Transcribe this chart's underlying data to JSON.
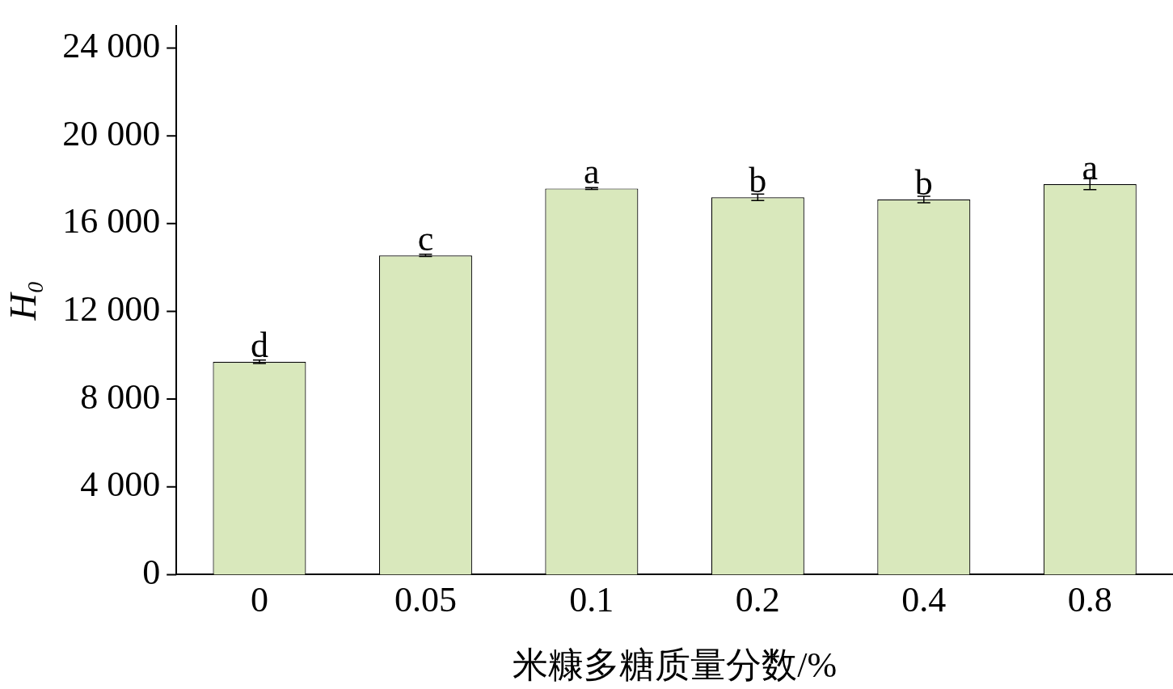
{
  "chart_data": {
    "type": "bar",
    "xlabel": "米糠多糖质量分数/%",
    "ylabel": "H₀",
    "categories": [
      "0",
      "0.05",
      "0.1",
      "0.2",
      "0.4",
      "0.8"
    ],
    "series": [
      {
        "color": "#d9e8bc",
        "values": [
          9700,
          14550,
          17600,
          17200,
          17100,
          17800
        ],
        "errors": [
          80,
          50,
          40,
          150,
          150,
          250
        ]
      }
    ],
    "ylim": [
      0,
      25000
    ],
    "yticks": [
      {
        "value": 0,
        "label": "0"
      },
      {
        "value": 4000,
        "label": "4 000"
      },
      {
        "value": 8000,
        "label": "8 000"
      },
      {
        "value": 12000,
        "label": "12 000"
      },
      {
        "value": 16000,
        "label": "16 000"
      },
      {
        "value": 20000,
        "label": "20 000"
      },
      {
        "value": 24000,
        "label": "24 000"
      }
    ],
    "annotations": [
      {
        "text": "d",
        "x": "0",
        "y": 9700
      },
      {
        "text": "c",
        "x": "0.05",
        "y": 14550
      },
      {
        "text": "a",
        "x": "0.1",
        "y": 17600
      },
      {
        "text": "b",
        "x": "0.2",
        "y": 17200
      },
      {
        "text": "b",
        "x": "0.4",
        "y": 17100
      },
      {
        "text": "a",
        "x": "0.8",
        "y": 17800
      }
    ],
    "grid": false,
    "legend": false
  }
}
